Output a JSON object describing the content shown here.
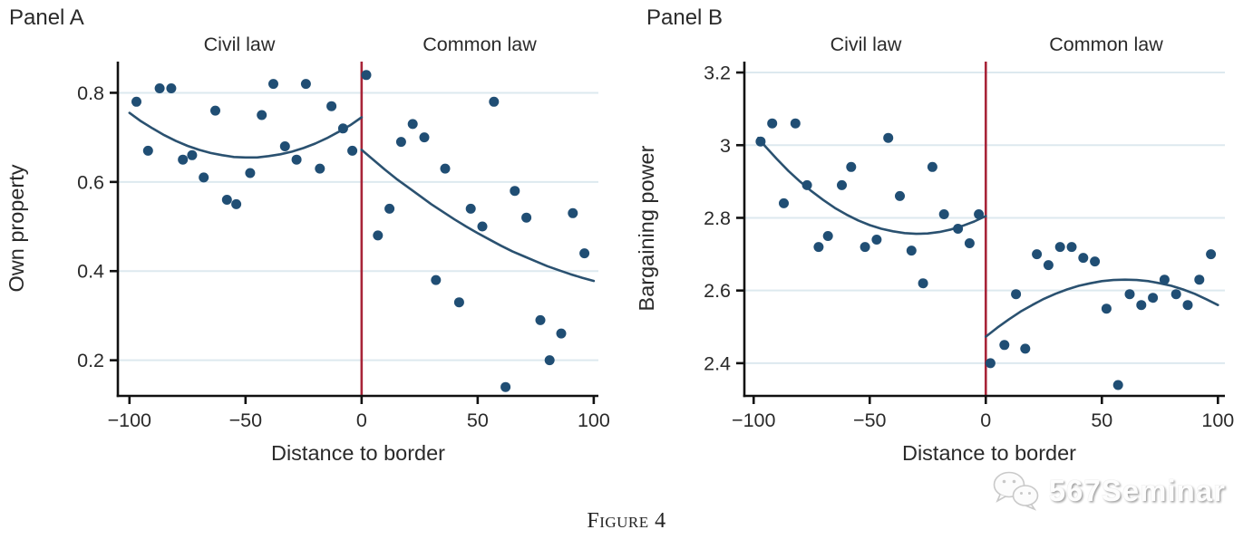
{
  "figure": {
    "caption": "Figure 4"
  },
  "watermark": {
    "text": "567Seminar",
    "icon": "wechat-icon"
  },
  "colors": {
    "point": "#204e74",
    "curve": "#2a5170",
    "cutoff": "#a82438",
    "grid": "#dde9ef",
    "axis": "#111111",
    "text": "#2a2a2a"
  },
  "chart_data": [
    {
      "type": "scatter",
      "title": "Panel A",
      "xlabel": "Distance to border",
      "ylabel": "Own property",
      "region_labels": [
        "Civil law",
        "Common law"
      ],
      "cutoff_x": 0,
      "grid": true,
      "legend": "none",
      "xlim": [
        -105,
        102
      ],
      "ylim": [
        0.12,
        0.87
      ],
      "xticks": [
        -100,
        -50,
        0,
        50,
        100
      ],
      "xtick_labels": [
        "−100",
        "−50",
        "0",
        "50",
        "100"
      ],
      "yticks": [
        0.2,
        0.4,
        0.6,
        0.8
      ],
      "ytick_labels": [
        "0.2",
        "0.4",
        "0.6",
        "0.8"
      ],
      "points": [
        [
          -97,
          0.78
        ],
        [
          -92,
          0.67
        ],
        [
          -87,
          0.81
        ],
        [
          -82,
          0.81
        ],
        [
          -77,
          0.65
        ],
        [
          -73,
          0.66
        ],
        [
          -68,
          0.61
        ],
        [
          -63,
          0.76
        ],
        [
          -58,
          0.56
        ],
        [
          -54,
          0.55
        ],
        [
          -48,
          0.62
        ],
        [
          -43,
          0.75
        ],
        [
          -38,
          0.82
        ],
        [
          -33,
          0.68
        ],
        [
          -28,
          0.65
        ],
        [
          -24,
          0.82
        ],
        [
          -18,
          0.63
        ],
        [
          -13,
          0.77
        ],
        [
          -8,
          0.72
        ],
        [
          -4,
          0.67
        ],
        [
          2,
          0.84
        ],
        [
          7,
          0.48
        ],
        [
          12,
          0.54
        ],
        [
          17,
          0.69
        ],
        [
          22,
          0.73
        ],
        [
          27,
          0.7
        ],
        [
          32,
          0.38
        ],
        [
          36,
          0.63
        ],
        [
          42,
          0.33
        ],
        [
          47,
          0.54
        ],
        [
          52,
          0.5
        ],
        [
          57,
          0.78
        ],
        [
          62,
          0.14
        ],
        [
          66,
          0.58
        ],
        [
          71,
          0.52
        ],
        [
          77,
          0.29
        ],
        [
          81,
          0.2
        ],
        [
          86,
          0.26
        ],
        [
          91,
          0.53
        ],
        [
          96,
          0.44
        ]
      ],
      "fit_lines": [
        {
          "name": "civil-law-fit",
          "points": [
            [
              -100,
              0.755
            ],
            [
              -95,
              0.736
            ],
            [
              -90,
              0.72
            ],
            [
              -85,
              0.705
            ],
            [
              -80,
              0.692
            ],
            [
              -75,
              0.681
            ],
            [
              -70,
              0.672
            ],
            [
              -65,
              0.665
            ],
            [
              -60,
              0.66
            ],
            [
              -55,
              0.656
            ],
            [
              -50,
              0.655
            ],
            [
              -45,
              0.655
            ],
            [
              -40,
              0.658
            ],
            [
              -35,
              0.662
            ],
            [
              -30,
              0.668
            ],
            [
              -25,
              0.676
            ],
            [
              -20,
              0.686
            ],
            [
              -15,
              0.698
            ],
            [
              -10,
              0.712
            ],
            [
              -5,
              0.727
            ],
            [
              0,
              0.745
            ]
          ]
        },
        {
          "name": "common-law-fit",
          "points": [
            [
              0,
              0.672
            ],
            [
              5,
              0.65
            ],
            [
              10,
              0.628
            ],
            [
              15,
              0.607
            ],
            [
              20,
              0.588
            ],
            [
              25,
              0.569
            ],
            [
              30,
              0.55
            ],
            [
              35,
              0.533
            ],
            [
              40,
              0.516
            ],
            [
              45,
              0.5
            ],
            [
              50,
              0.485
            ],
            [
              55,
              0.471
            ],
            [
              60,
              0.457
            ],
            [
              65,
              0.444
            ],
            [
              70,
              0.433
            ],
            [
              75,
              0.422
            ],
            [
              80,
              0.411
            ],
            [
              85,
              0.402
            ],
            [
              90,
              0.393
            ],
            [
              95,
              0.385
            ],
            [
              100,
              0.378
            ]
          ]
        }
      ]
    },
    {
      "type": "scatter",
      "title": "Panel B",
      "xlabel": "Distance to border",
      "ylabel": "Bargaining power",
      "region_labels": [
        "Civil law",
        "Common law"
      ],
      "cutoff_x": 0,
      "grid": true,
      "legend": "none",
      "xlim": [
        -104,
        103
      ],
      "ylim": [
        2.31,
        3.23
      ],
      "xticks": [
        -100,
        -50,
        0,
        50,
        100
      ],
      "xtick_labels": [
        "−100",
        "−50",
        "0",
        "50",
        "100"
      ],
      "yticks": [
        2.4,
        2.6,
        2.8,
        3.0,
        3.2
      ],
      "ytick_labels": [
        "2.4",
        "2.6",
        "2.8",
        "3",
        "3.2"
      ],
      "points": [
        [
          -97,
          3.01
        ],
        [
          -92,
          3.06
        ],
        [
          -87,
          2.84
        ],
        [
          -82,
          3.06
        ],
        [
          -77,
          2.89
        ],
        [
          -72,
          2.72
        ],
        [
          -68,
          2.75
        ],
        [
          -62,
          2.89
        ],
        [
          -58,
          2.94
        ],
        [
          -52,
          2.72
        ],
        [
          -47,
          2.74
        ],
        [
          -42,
          3.02
        ],
        [
          -37,
          2.86
        ],
        [
          -32,
          2.71
        ],
        [
          -27,
          2.62
        ],
        [
          -23,
          2.94
        ],
        [
          -18,
          2.81
        ],
        [
          -12,
          2.77
        ],
        [
          -7,
          2.73
        ],
        [
          -3,
          2.81
        ],
        [
          2,
          2.4
        ],
        [
          8,
          2.45
        ],
        [
          13,
          2.59
        ],
        [
          17,
          2.44
        ],
        [
          22,
          2.7
        ],
        [
          27,
          2.67
        ],
        [
          32,
          2.72
        ],
        [
          37,
          2.72
        ],
        [
          42,
          2.69
        ],
        [
          47,
          2.68
        ],
        [
          52,
          2.55
        ],
        [
          57,
          2.34
        ],
        [
          62,
          2.59
        ],
        [
          67,
          2.56
        ],
        [
          72,
          2.58
        ],
        [
          77,
          2.63
        ],
        [
          82,
          2.59
        ],
        [
          87,
          2.56
        ],
        [
          92,
          2.63
        ],
        [
          97,
          2.7
        ]
      ],
      "fit_lines": [
        {
          "name": "civil-law-fit",
          "points": [
            [
              -98,
              3.02
            ],
            [
              -95,
              2.997
            ],
            [
              -90,
              2.962
            ],
            [
              -85,
              2.929
            ],
            [
              -80,
              2.9
            ],
            [
              -75,
              2.873
            ],
            [
              -70,
              2.849
            ],
            [
              -65,
              2.827
            ],
            [
              -60,
              2.809
            ],
            [
              -55,
              2.793
            ],
            [
              -50,
              2.78
            ],
            [
              -45,
              2.77
            ],
            [
              -40,
              2.763
            ],
            [
              -35,
              2.758
            ],
            [
              -30,
              2.756
            ],
            [
              -25,
              2.757
            ],
            [
              -20,
              2.761
            ],
            [
              -15,
              2.768
            ],
            [
              -10,
              2.778
            ],
            [
              -5,
              2.79
            ],
            [
              0,
              2.805
            ]
          ]
        },
        {
          "name": "common-law-fit",
          "points": [
            [
              0,
              2.473
            ],
            [
              5,
              2.498
            ],
            [
              10,
              2.521
            ],
            [
              15,
              2.542
            ],
            [
              20,
              2.56
            ],
            [
              25,
              2.577
            ],
            [
              30,
              2.591
            ],
            [
              35,
              2.603
            ],
            [
              40,
              2.613
            ],
            [
              45,
              2.62
            ],
            [
              50,
              2.626
            ],
            [
              55,
              2.629
            ],
            [
              60,
              2.63
            ],
            [
              65,
              2.629
            ],
            [
              70,
              2.626
            ],
            [
              75,
              2.62
            ],
            [
              80,
              2.613
            ],
            [
              85,
              2.603
            ],
            [
              90,
              2.591
            ],
            [
              95,
              2.576
            ],
            [
              100,
              2.56
            ]
          ]
        }
      ]
    }
  ]
}
